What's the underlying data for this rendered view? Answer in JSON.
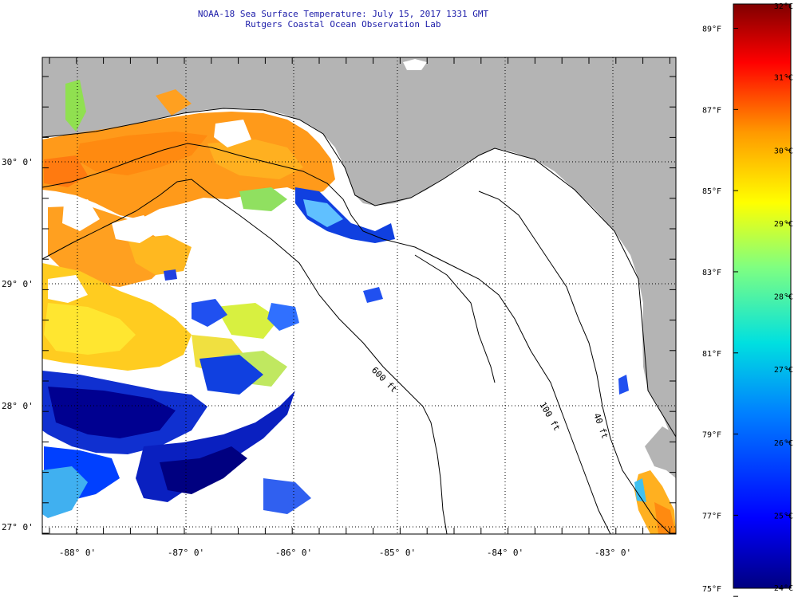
{
  "header": {
    "title": "NOAA-18 Sea Surface Temperature:  July 15, 2017 1331 GMT",
    "subtitle": "Rutgers Coastal Ocean Observation Lab"
  },
  "axes": {
    "lat_labels": [
      "30° 0'",
      "29° 0'",
      "28° 0'",
      "27° 0'"
    ],
    "lon_labels": [
      "-88° 0'",
      "-87° 0'",
      "-86° 0'",
      "-85° 0'",
      "-84° 0'",
      "-83° 0'"
    ]
  },
  "isobath_labels": [
    "600 ft",
    "100 ft",
    "40 ft"
  ],
  "colorbar": {
    "celsius_labels": [
      "32°C",
      "31°C",
      "30°C",
      "29°C",
      "28°C",
      "27°C",
      "26°C",
      "25°C",
      "24°C"
    ],
    "fahrenheit_labels": [
      "89°F",
      "87°F",
      "85°F",
      "83°F",
      "81°F",
      "79°F",
      "77°F",
      "75°F"
    ],
    "celsius_min": 24,
    "celsius_max": 32
  },
  "colors": {
    "land": "#b4b4b4",
    "cloud": "#ffffff",
    "title": "#1a1aa8"
  }
}
